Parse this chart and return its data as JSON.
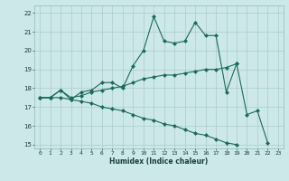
{
  "xlabel": "Humidex (Indice chaleur)",
  "xlim": [
    -0.5,
    23.5
  ],
  "ylim": [
    14.8,
    22.4
  ],
  "yticks": [
    15,
    16,
    17,
    18,
    19,
    20,
    21,
    22
  ],
  "xticks": [
    0,
    1,
    2,
    3,
    4,
    5,
    6,
    7,
    8,
    9,
    10,
    11,
    12,
    13,
    14,
    15,
    16,
    17,
    18,
    19,
    20,
    21,
    22,
    23
  ],
  "bg_color": "#cce8e8",
  "line_color": "#1a6b5a",
  "grid_color": "#aacccc",
  "line1_x": [
    0,
    1,
    2,
    3,
    4,
    5,
    6,
    7,
    8,
    9,
    10,
    11,
    12,
    13,
    14,
    15,
    16,
    17,
    18,
    19,
    20,
    21,
    22
  ],
  "line1_y": [
    17.5,
    17.5,
    17.9,
    17.4,
    17.8,
    17.9,
    18.3,
    18.3,
    18.0,
    19.2,
    20.0,
    21.8,
    20.5,
    20.4,
    20.5,
    21.5,
    20.8,
    20.8,
    17.8,
    19.3,
    16.6,
    16.8,
    15.1
  ],
  "line2_x": [
    0,
    1,
    2,
    3,
    4,
    5,
    6,
    7,
    8,
    9,
    10,
    11,
    12,
    13,
    14,
    15,
    16,
    17,
    18,
    19
  ],
  "line2_y": [
    17.5,
    17.5,
    17.9,
    17.5,
    17.6,
    17.8,
    17.9,
    18.0,
    18.1,
    18.3,
    18.5,
    18.6,
    18.7,
    18.7,
    18.8,
    18.9,
    19.0,
    19.0,
    19.1,
    19.3
  ],
  "line3_x": [
    0,
    1,
    2,
    3,
    4,
    5,
    6,
    7,
    8,
    9,
    10,
    11,
    12,
    13,
    14,
    15,
    16,
    17,
    18,
    19
  ],
  "line3_y": [
    17.5,
    17.5,
    17.5,
    17.4,
    17.3,
    17.2,
    17.0,
    16.9,
    16.8,
    16.6,
    16.4,
    16.3,
    16.1,
    16.0,
    15.8,
    15.6,
    15.5,
    15.3,
    15.1,
    15.0
  ],
  "markersize": 2.5,
  "linewidth": 0.8
}
